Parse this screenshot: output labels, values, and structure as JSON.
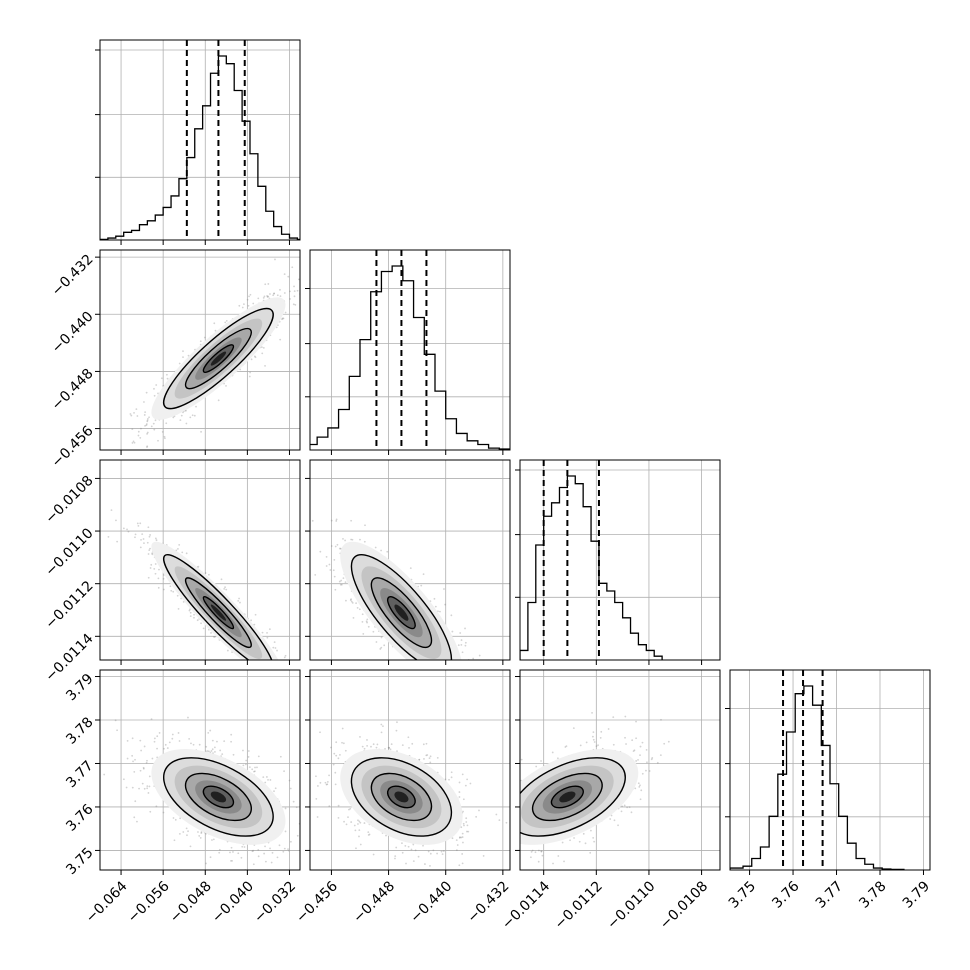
{
  "chart_data": {
    "type": "corner",
    "grid": true,
    "colors": {
      "line": "#000000",
      "grid": "#b0b0b0",
      "scatter": "#808080"
    },
    "parameters": [
      {
        "range": [
          -0.068,
          -0.03
        ],
        "ticks": [
          -0.064,
          -0.056,
          -0.048,
          -0.04,
          -0.032
        ],
        "tick_labels": [
          "−0.064",
          "−0.056",
          "−0.048",
          "−0.040",
          "−0.032"
        ],
        "quantiles": [
          -0.0515,
          -0.0455,
          -0.0405
        ],
        "histogram": {
          "bins": [
            -0.068,
            -0.0665,
            -0.065,
            -0.0635,
            -0.062,
            -0.0605,
            -0.059,
            -0.0575,
            -0.056,
            -0.0545,
            -0.053,
            -0.0515,
            -0.05,
            -0.0485,
            -0.047,
            -0.0455,
            -0.044,
            -0.0425,
            -0.041,
            -0.0395,
            -0.038,
            -0.0365,
            -0.035,
            -0.0335,
            -0.032,
            -0.0305
          ],
          "counts": [
            0.3,
            1,
            2,
            4,
            5,
            8,
            10,
            13,
            17,
            23,
            32,
            43,
            58,
            70,
            87,
            96,
            92,
            78,
            62,
            45,
            28,
            15,
            7,
            3,
            1,
            0.3
          ],
          "y_tick_positions": [
            0.33,
            0.66,
            1.0
          ]
        }
      },
      {
        "range": [
          -0.459,
          -0.431
        ],
        "ticks": [
          -0.456,
          -0.448,
          -0.44,
          -0.432
        ],
        "tick_labels": [
          "−0.456",
          "−0.448",
          "−0.440",
          "−0.432"
        ],
        "quantiles": [
          -0.4497,
          -0.4462,
          -0.4427
        ],
        "histogram": {
          "bins": [
            -0.4625,
            -0.461,
            -0.4595,
            -0.458,
            -0.4565,
            -0.455,
            -0.4535,
            -0.452,
            -0.4505,
            -0.449,
            -0.4475,
            -0.446,
            -0.4445,
            -0.443,
            -0.4415,
            -0.44,
            -0.4385,
            -0.437,
            -0.4355,
            -0.434,
            -0.4325
          ],
          "counts": [
            0.5,
            1,
            3,
            7,
            12,
            22,
            40,
            60,
            86,
            97,
            100,
            92,
            72,
            52,
            32,
            17,
            9,
            5,
            3,
            1,
            0.5
          ],
          "y_tick_positions": [
            0.28,
            0.56,
            0.85
          ]
        }
      },
      {
        "range": [
          -0.01149,
          -0.01073
        ],
        "ticks": [
          -0.0114,
          -0.0112,
          -0.011,
          -0.0108
        ],
        "tick_labels": [
          "−0.0114",
          "−0.0112",
          "−0.0110",
          "−0.0108"
        ],
        "quantiles": [
          -0.0114,
          -0.01131,
          -0.01119
        ],
        "histogram": {
          "bins": [
            -0.01149,
            -0.01146,
            -0.01143,
            -0.0114,
            -0.01137,
            -0.01134,
            -0.01131,
            -0.01128,
            -0.01125,
            -0.01122,
            -0.01119,
            -0.01116,
            -0.01113,
            -0.0111,
            -0.01107,
            -0.01104,
            -0.01101,
            -0.01098
          ],
          "counts": [
            5,
            30,
            60,
            75,
            82,
            90,
            96,
            92,
            80,
            62,
            40,
            36,
            30,
            22,
            14,
            8,
            5,
            2
          ],
          "y_tick_positions": [
            0.33,
            0.66,
            1.0
          ]
        }
      },
      {
        "range": [
          3.7455,
          3.7915
        ],
        "ticks": [
          3.75,
          3.76,
          3.77,
          3.78,
          3.79
        ],
        "tick_labels": [
          "3.75",
          "3.76",
          "3.77",
          "3.78",
          "3.79"
        ],
        "quantiles": [
          3.7577,
          3.7623,
          3.7668
        ],
        "histogram": {
          "bins": [
            3.7455,
            3.7485,
            3.7505,
            3.7525,
            3.7545,
            3.7565,
            3.7585,
            3.7605,
            3.7625,
            3.7645,
            3.7665,
            3.7685,
            3.7705,
            3.7725,
            3.7745,
            3.7765,
            3.7785,
            3.7805,
            3.7825
          ],
          "counts": [
            1,
            2,
            6,
            12,
            28,
            50,
            72,
            92,
            96,
            86,
            65,
            45,
            28,
            14,
            6,
            3,
            1,
            0.5,
            0.3
          ],
          "y_tick_positions": [
            0.28,
            0.56,
            0.85
          ]
        }
      }
    ],
    "pairs": [
      {
        "row": 1,
        "col": 0,
        "mean": [
          -0.0455,
          -0.4462
        ],
        "sd": [
          0.0052,
          0.0035
        ],
        "rho": 0.88,
        "scatter_sd": [
          0.0065,
          0.0045
        ]
      },
      {
        "row": 2,
        "col": 0,
        "mean": [
          -0.0455,
          -0.01131
        ],
        "sd": [
          0.0052,
          0.00011
        ],
        "rho": -0.93,
        "scatter_sd": [
          0.0065,
          0.00013
        ]
      },
      {
        "row": 2,
        "col": 1,
        "mean": [
          -0.4462,
          -0.01131
        ],
        "sd": [
          0.0035,
          0.00011
        ],
        "rho": -0.8,
        "scatter_sd": [
          0.0045,
          0.00013
        ]
      },
      {
        "row": 3,
        "col": 0,
        "mean": [
          -0.0455,
          3.7623
        ],
        "sd": [
          0.0052,
          0.0045
        ],
        "rho": -0.5,
        "scatter_sd": [
          0.0065,
          0.006
        ]
      },
      {
        "row": 3,
        "col": 1,
        "mean": [
          -0.4462,
          3.7623
        ],
        "sd": [
          0.0035,
          0.0045
        ],
        "rho": -0.4,
        "scatter_sd": [
          0.0045,
          0.006
        ]
      },
      {
        "row": 3,
        "col": 2,
        "mean": [
          -0.01131,
          3.7623
        ],
        "sd": [
          0.00011,
          0.0045
        ],
        "rho": 0.5,
        "scatter_sd": [
          0.00013,
          0.006
        ]
      }
    ]
  }
}
